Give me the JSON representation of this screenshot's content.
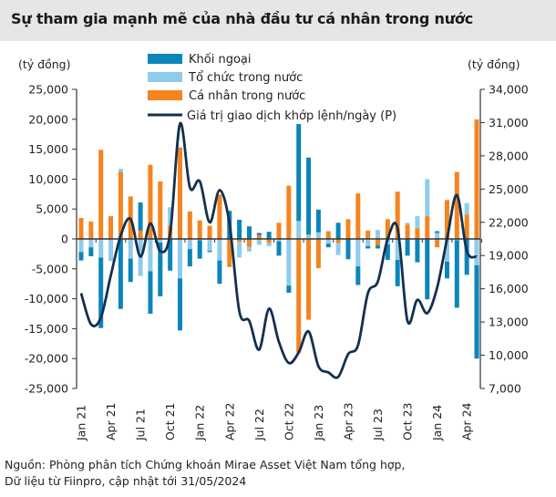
{
  "title": "Sự tham gia mạnh mẽ của nhà đầu tư cá nhân trong nước",
  "footnote": [
    "Nguồn: Phòng phân tích Chứng khoán Mirae Asset Việt Nam tổng hợp,",
    "Dữ liệu từ Fiinpro, cập nhật tới 31/05/2024"
  ],
  "chart_data": {
    "type": "bar",
    "stacked": true,
    "ylabel": "(tỷ đồng)",
    "y2label": "(tỷ đồng)",
    "ylim": [
      -25000,
      25000
    ],
    "y2lim": [
      7000,
      34000
    ],
    "yticks": [
      "25,000",
      "20,000",
      "15,000",
      "10,000",
      "5,000",
      "0",
      "-5,000",
      "-10,000",
      "-15,000",
      "-20,000",
      "-25,000"
    ],
    "y2ticks": [
      "34,000",
      "31,000",
      "28,000",
      "25,000",
      "22,000",
      "19,000",
      "16,000",
      "13,000",
      "10,000",
      "7,000"
    ],
    "xtick_labels": [
      "Jan 21",
      "Apr 21",
      "Jul 21",
      "Oct 21",
      "Jan 22",
      "Apr 22",
      "Jul 22",
      "Oct 22",
      "Jan 23",
      "Apr 23",
      "Jul 23",
      "Oct 23",
      "Jan 24",
      "Apr 24"
    ],
    "categories": [
      "Jan 21",
      "Feb 21",
      "Mar 21",
      "Apr 21",
      "May 21",
      "Jun 21",
      "Jul 21",
      "Aug 21",
      "Sep 21",
      "Oct 21",
      "Nov 21",
      "Dec 21",
      "Jan 22",
      "Feb 22",
      "Mar 22",
      "Apr 22",
      "May 22",
      "Jun 22",
      "Jul 22",
      "Aug 22",
      "Sep 22",
      "Oct 22",
      "Nov 22",
      "Dec 22",
      "Jan 23",
      "Feb 23",
      "Mar 23",
      "Apr 23",
      "May 23",
      "Jun 23",
      "Jul 23",
      "Aug 23",
      "Sep 23",
      "Oct 23",
      "Nov 23",
      "Dec 23",
      "Jan 24",
      "Feb 24",
      "Mar 24",
      "Apr 24",
      "May 24"
    ],
    "legend_position": "top",
    "series": [
      {
        "name": "Khối ngoại",
        "type": "bar",
        "axis": "left",
        "color": "#0b85ba",
        "values": [
          -1400,
          -1500,
          -11800,
          0,
          -11700,
          -3900,
          4700,
          -7100,
          -9000,
          -5300,
          -8700,
          -2900,
          -3100,
          -200,
          -3900,
          4700,
          3200,
          2100,
          400,
          1200,
          -2400,
          -1200,
          16200,
          12900,
          3800,
          -600,
          2700,
          -3400,
          -3100,
          -400,
          -500,
          -2600,
          -4400,
          -2800,
          -3900,
          -10100,
          300,
          -2800,
          -11300,
          -6000,
          -15600
        ]
      },
      {
        "name": "Tổ chức trong nước",
        "type": "bar",
        "axis": "left",
        "color": "#8fcbea",
        "values": [
          -2200,
          -1400,
          -3100,
          -3700,
          500,
          -3300,
          -6200,
          -5400,
          -600,
          3100,
          -6600,
          -1700,
          -200,
          -2000,
          -3600,
          0,
          -2600,
          -800,
          -1000,
          -500,
          -400,
          -7800,
          3000,
          700,
          1100,
          -800,
          -2000,
          0,
          -4600,
          -1200,
          1500,
          -900,
          -3500,
          300,
          2000,
          6200,
          1000,
          -3800,
          -200,
          1900,
          -4400
        ]
      },
      {
        "name": "Cá nhân trong nước",
        "type": "bar",
        "axis": "left",
        "color": "#f5841f",
        "values": [
          3500,
          2900,
          14900,
          3800,
          11200,
          7100,
          1400,
          12400,
          9600,
          2200,
          15300,
          4600,
          3100,
          2200,
          7400,
          -4700,
          -500,
          -1300,
          600,
          -700,
          2700,
          8900,
          -19000,
          -13500,
          -4900,
          1300,
          -700,
          3300,
          7600,
          1400,
          -1100,
          3300,
          7900,
          2400,
          1800,
          3800,
          -1400,
          6500,
          11200,
          4100,
          20000
        ]
      },
      {
        "name": "Giá trị giao dịch khớp lệnh/ngày (P)",
        "type": "line",
        "axis": "right",
        "color": "#13304f",
        "values": [
          15600,
          12800,
          13400,
          17200,
          20800,
          22300,
          18900,
          21900,
          19400,
          21000,
          30900,
          25150,
          25700,
          22000,
          24900,
          21900,
          13950,
          13100,
          10500,
          14200,
          11200,
          9300,
          10250,
          12150,
          9000,
          8450,
          8050,
          10100,
          10900,
          15600,
          16650,
          20500,
          21450,
          13100,
          15000,
          13800,
          16100,
          20500,
          24450,
          19400,
          18900
        ]
      }
    ]
  }
}
